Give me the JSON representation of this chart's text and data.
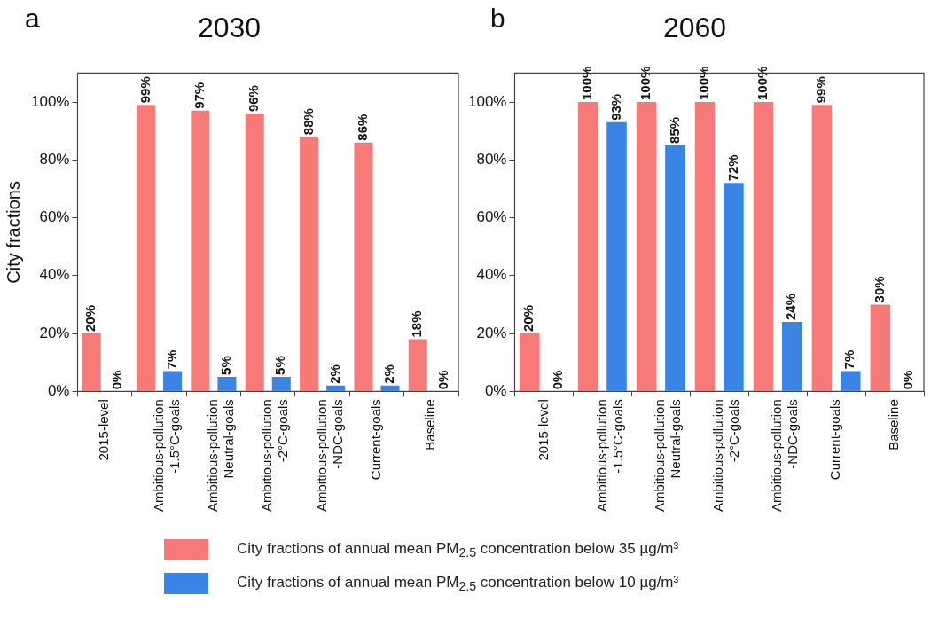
{
  "chart_data": [
    {
      "type": "bar",
      "title": "2030",
      "ylabel": "City fractions",
      "annotations": [
        "a"
      ],
      "categories": [
        "2015-level",
        "Ambitious-pollution\n-1.5°C-goals",
        "Ambitious-pollution\nNeutral-goals",
        "Ambitious-pollution\n-2°C-goals",
        "Ambitious-pollution\n-NDC-goals",
        "Current-goals",
        "Baseline"
      ],
      "series": [
        {
          "name": "City fractions of annual mean PM$_{2.5}$ concentration below 35 µg/m³",
          "color": "#f87a78",
          "values": [
            20,
            99,
            97,
            96,
            88,
            86,
            18
          ],
          "value_labels": [
            "20%",
            "99%",
            "97%",
            "96%",
            "88%",
            "86%",
            "18%"
          ]
        },
        {
          "name": "City fractions of annual mean PM$_{2.5}$ concentration below 10 µg/m³",
          "color": "#3a84e6",
          "values": [
            0,
            7,
            5,
            5,
            2,
            2,
            0
          ],
          "value_labels": [
            "0%",
            "7%",
            "5%",
            "5%",
            "2%",
            "2%",
            "0%"
          ]
        }
      ],
      "ylim": [
        0,
        110
      ],
      "yticks": [
        {
          "value": 0,
          "label": "0%"
        },
        {
          "value": 20,
          "label": "20%"
        },
        {
          "value": 40,
          "label": "40%"
        },
        {
          "value": 60,
          "label": "60%"
        },
        {
          "value": 80,
          "label": "80%"
        },
        {
          "value": 100,
          "label": "100%"
        }
      ],
      "grid": false,
      "legend": "bottom"
    },
    {
      "type": "bar",
      "title": "2060",
      "annotations": [
        "b"
      ],
      "categories": [
        "2015-level",
        "Ambitious-pollution\n-1.5°C-goals",
        "Ambitious-pollution\nNeutral-goals",
        "Ambitious-pollution\n-2°C-goals",
        "Ambitious-pollution\n-NDC-goals",
        "Current-goals",
        "Baseline"
      ],
      "series": [
        {
          "name": "City fractions of annual mean PM$_{2.5}$ concentration below 35 µg/m³",
          "color": "#f87a78",
          "values": [
            20,
            100,
            100,
            100,
            100,
            99,
            30
          ],
          "value_labels": [
            "20%",
            "100%",
            "100%",
            "100%",
            "100%",
            "99%",
            "30%"
          ]
        },
        {
          "name": "City fractions of annual mean PM$_{2.5}$ concentration below 10 µg/m³",
          "color": "#3a84e6",
          "values": [
            0,
            93,
            85,
            72,
            24,
            7,
            0
          ],
          "value_labels": [
            "0%",
            "93%",
            "85%",
            "72%",
            "24%",
            "7%",
            "0%"
          ]
        }
      ],
      "ylim": [
        0,
        110
      ],
      "yticks": [
        {
          "value": 0,
          "label": "0%"
        },
        {
          "value": 20,
          "label": "20%"
        },
        {
          "value": 40,
          "label": "40%"
        },
        {
          "value": 60,
          "label": "60%"
        },
        {
          "value": 80,
          "label": "80%"
        },
        {
          "value": 100,
          "label": "100%"
        }
      ],
      "grid": false,
      "legend": "bottom"
    }
  ]
}
